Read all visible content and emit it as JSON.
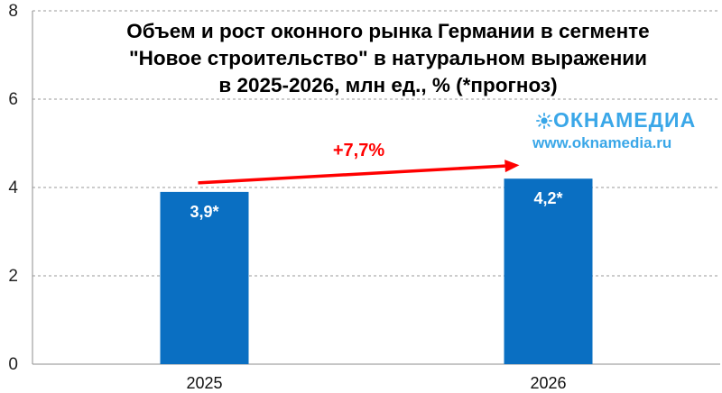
{
  "chart_data": {
    "type": "bar",
    "title_lines": [
      "Объем и рост оконного рынка Германии в сегменте",
      "\"Новое строительство\" в натуральном выражении",
      "в 2025-2026, млн ед., % (*прогноз)"
    ],
    "categories": [
      "2025",
      "2026"
    ],
    "values": [
      3.9,
      4.2
    ],
    "data_labels": [
      "3,9*",
      "4,2*"
    ],
    "y_ticks": [
      0,
      2,
      4,
      6,
      8
    ],
    "y_tick_labels": [
      "0",
      "2",
      "4",
      "6",
      "8"
    ],
    "ylim": [
      0,
      8
    ],
    "xlabel": "",
    "ylabel": "",
    "grid": true,
    "growth_label": "+7,7%",
    "bar_color": "#0a6fc2",
    "arrow_color": "#ff0000"
  },
  "logo": {
    "name": "ОКНАМЕДИА",
    "url": "www.oknamedia.ru",
    "color": "#3aa7e8"
  }
}
